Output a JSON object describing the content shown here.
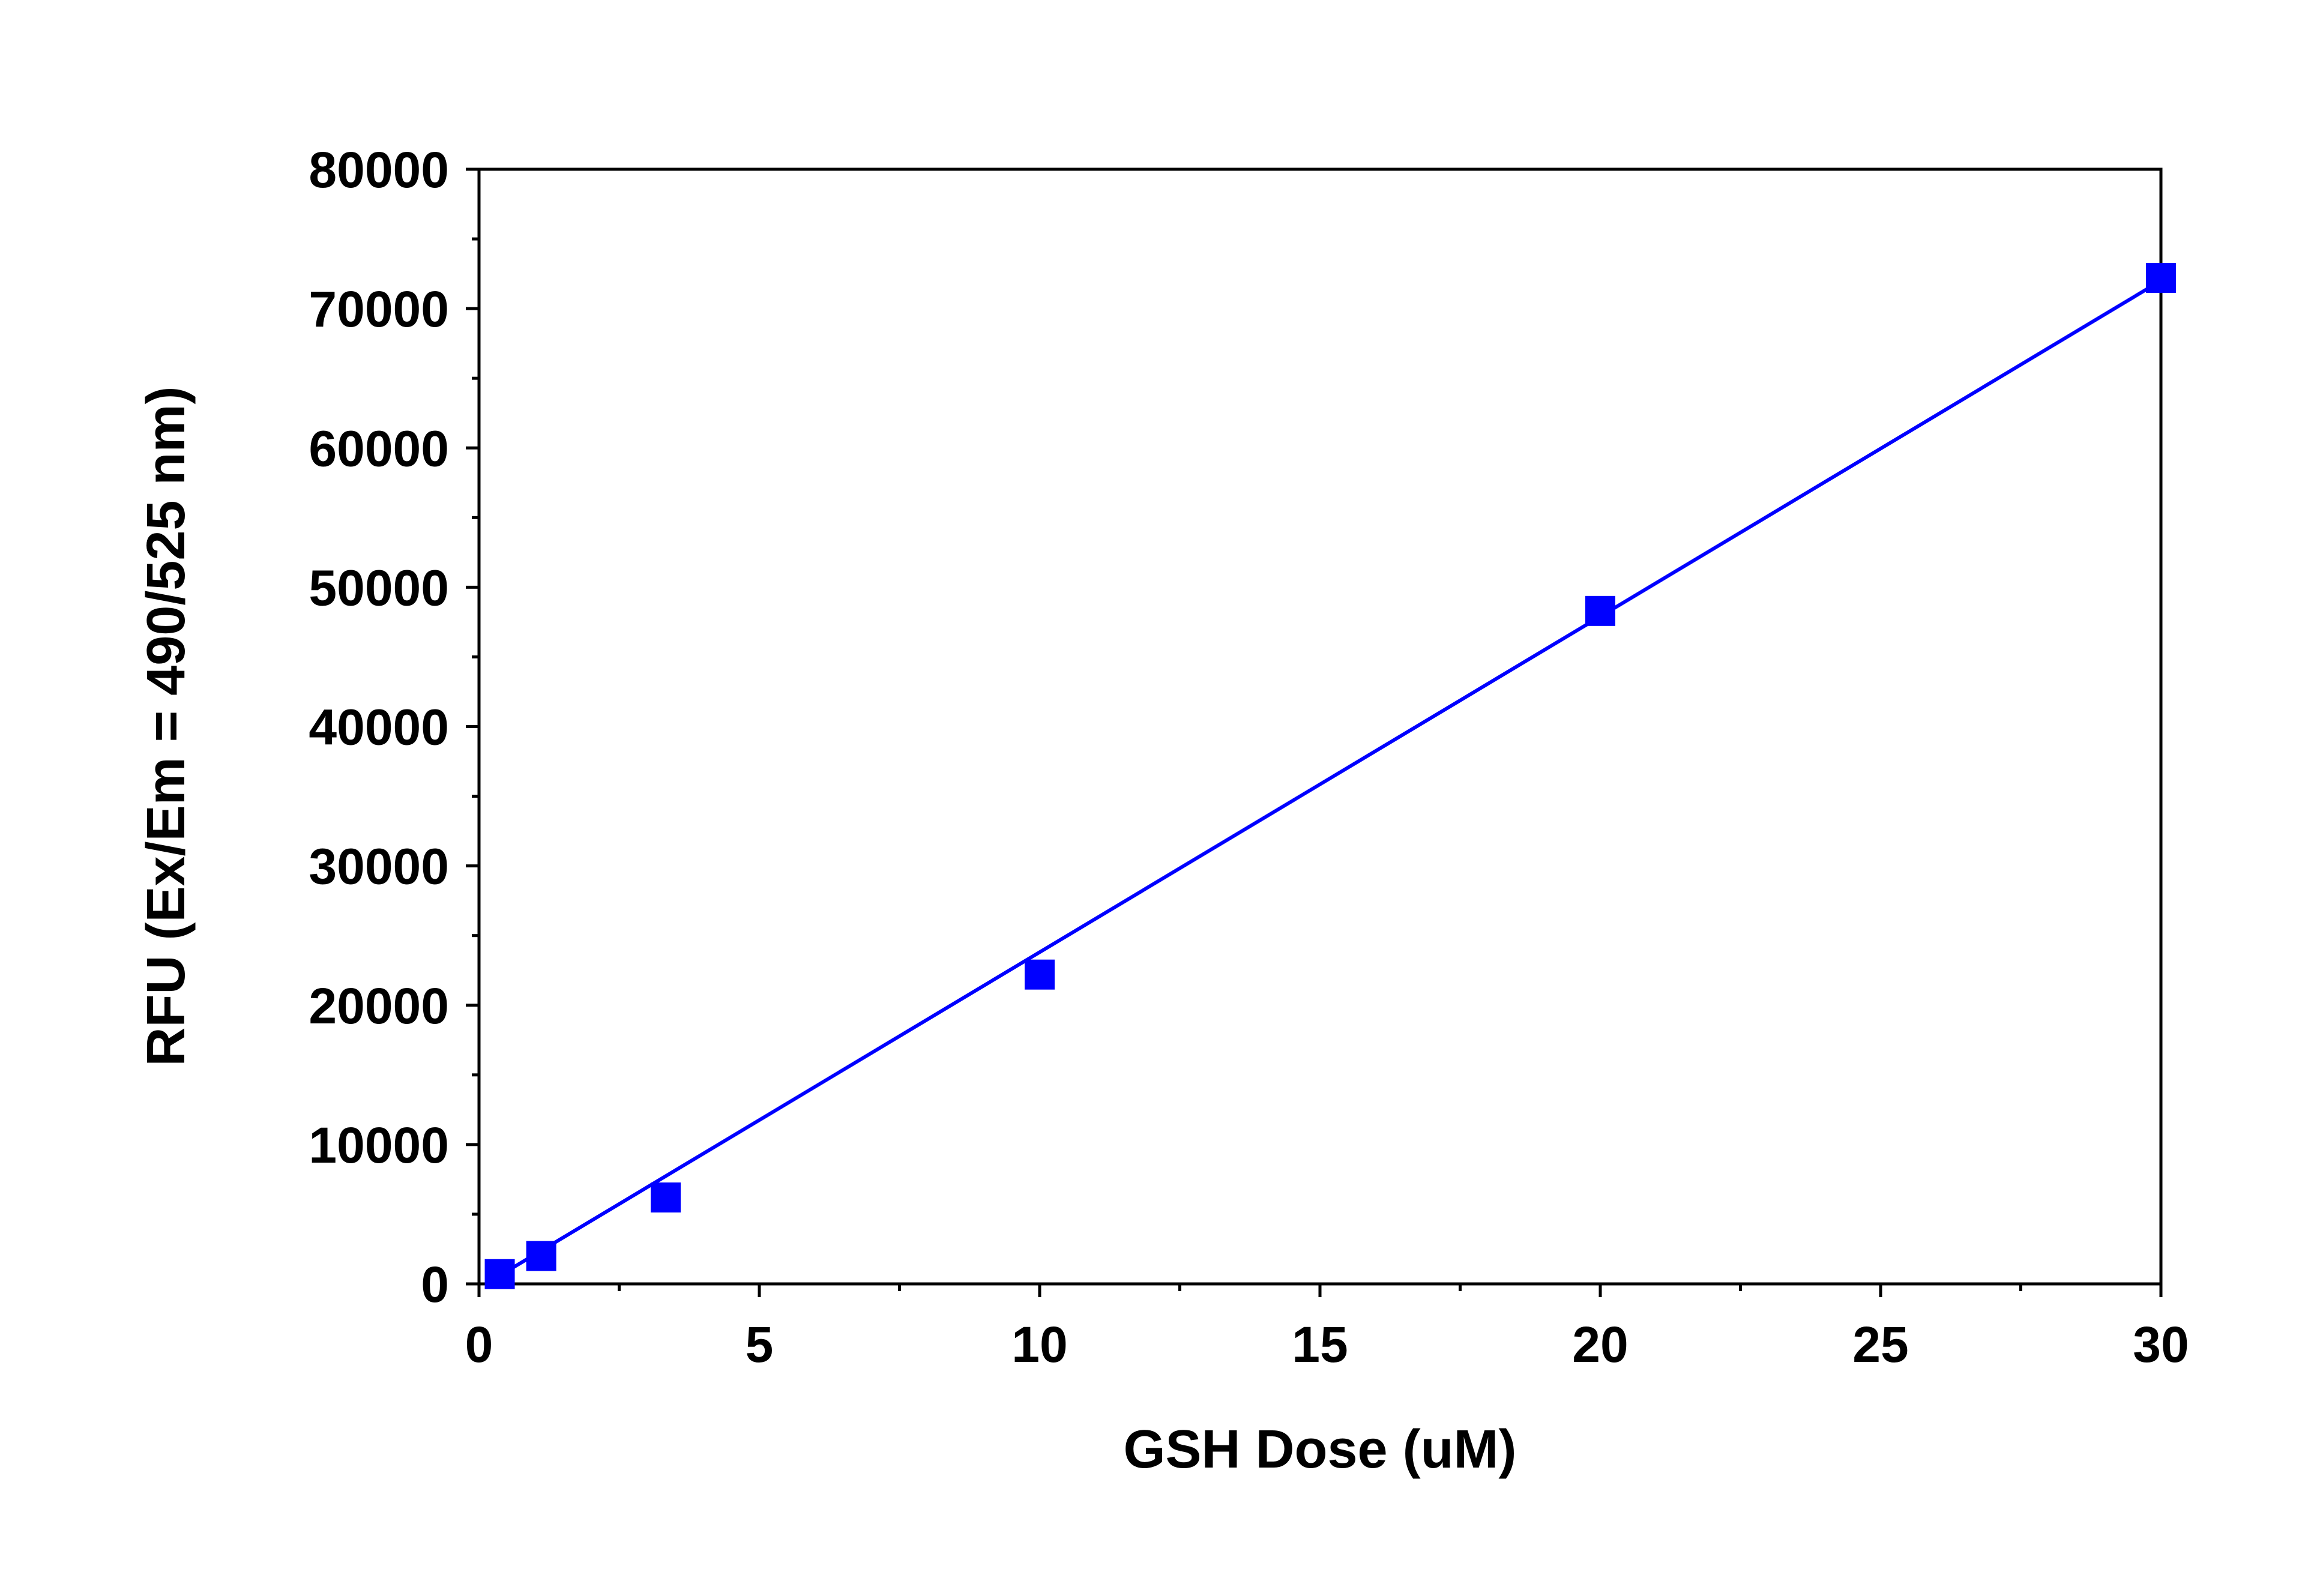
{
  "chart_data": {
    "type": "scatter",
    "x_label": "GSH Dose (uM)",
    "y_label": "RFU (Ex/Em = 490/525 nm)",
    "x": [
      0.37,
      1.11,
      3.33,
      10,
      20,
      30
    ],
    "series": [
      {
        "color": "#0000ff",
        "marker": "square",
        "values": [
          700,
          2000,
          6200,
          22200,
          48300,
          72200
        ]
      }
    ],
    "fit_line": {
      "color": "#0000ff",
      "x": [
        0.37,
        30
      ],
      "values": [
        600,
        72000
      ]
    },
    "xlim": [
      0,
      30
    ],
    "xticks": [
      0,
      5,
      10,
      15,
      20,
      25,
      30
    ],
    "x_minor_ticks": [
      2.5,
      7.5,
      12.5,
      17.5,
      22.5,
      27.5
    ],
    "ylim": [
      0,
      80000
    ],
    "yticks": [
      0,
      10000,
      20000,
      30000,
      40000,
      50000,
      60000,
      70000,
      80000
    ],
    "y_minor_ticks": [
      5000,
      15000,
      25000,
      35000,
      45000,
      55000,
      65000,
      75000
    ],
    "grid": false
  }
}
